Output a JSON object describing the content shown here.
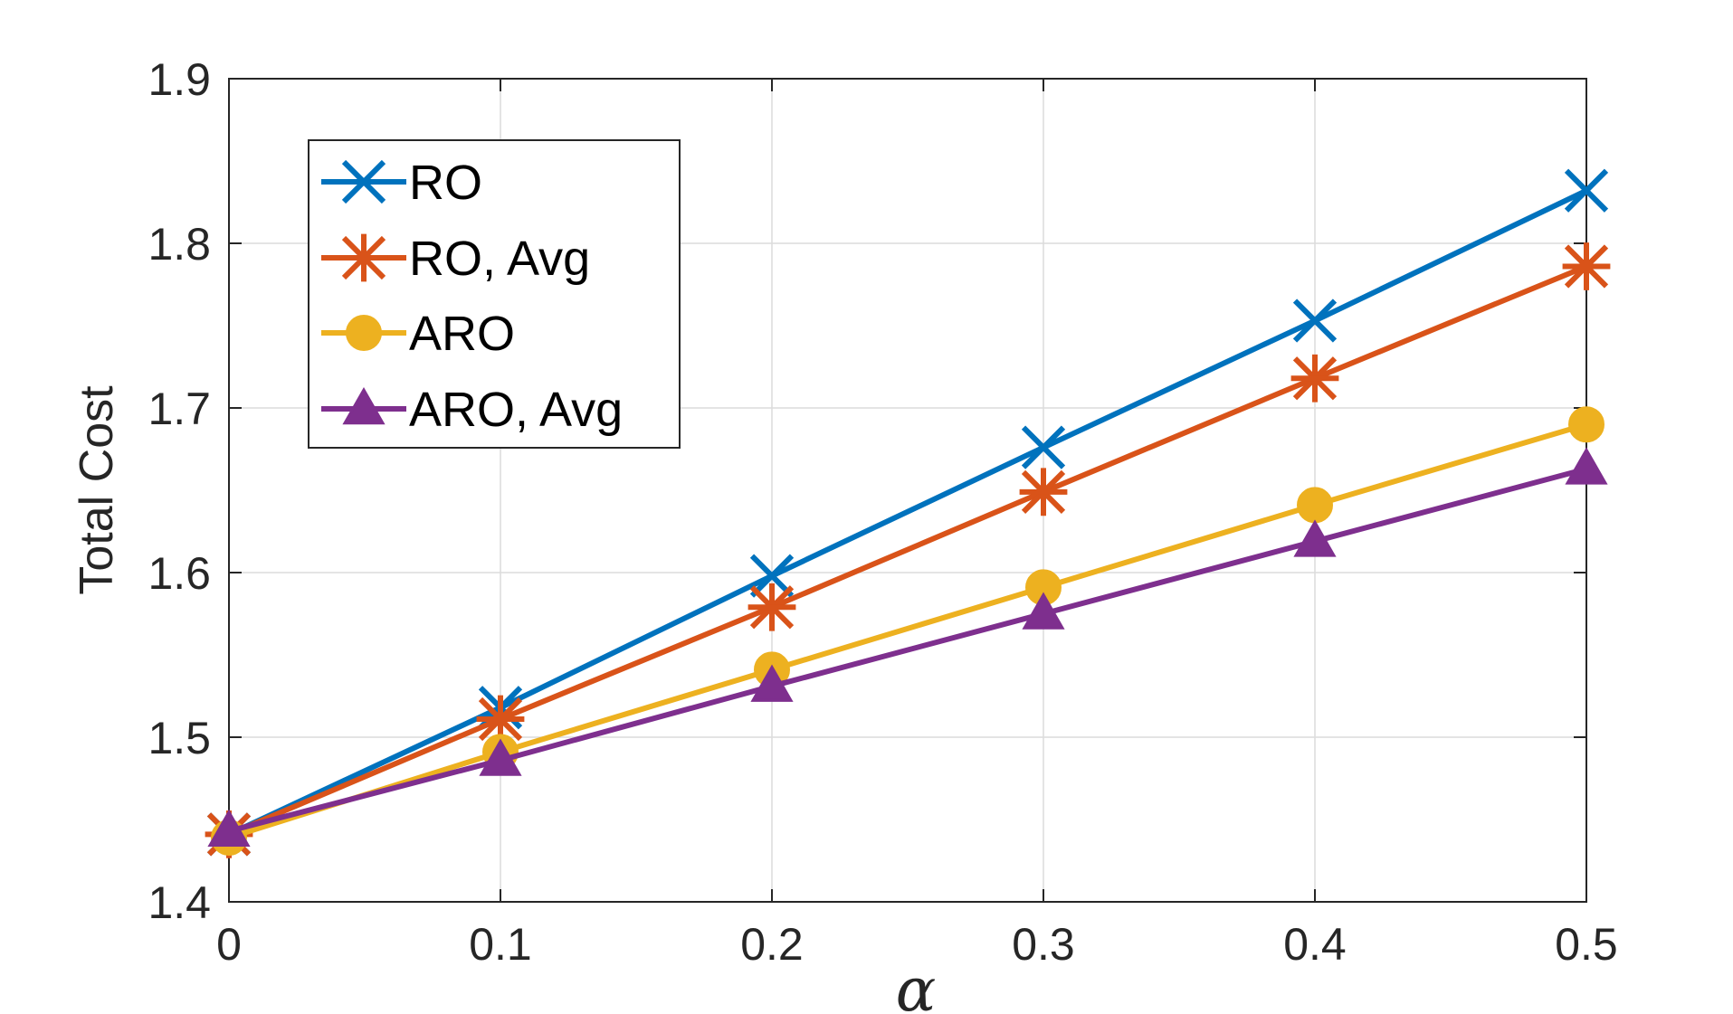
{
  "chart_data": {
    "type": "line",
    "xlabel": "α",
    "ylabel": "Total Cost",
    "title": "",
    "x": [
      0,
      0.1,
      0.2,
      0.3,
      0.4,
      0.5
    ],
    "xlim": [
      0,
      0.5
    ],
    "ylim": [
      1.4,
      1.9
    ],
    "xticks": [
      0,
      0.1,
      0.2,
      0.3,
      0.4,
      0.5
    ],
    "xtick_labels": [
      "0",
      "0.1",
      "0.2",
      "0.3",
      "0.4",
      "0.5"
    ],
    "yticks": [
      1.4,
      1.5,
      1.6,
      1.7,
      1.8,
      1.9
    ],
    "ytick_labels": [
      "1.4",
      "1.5",
      "1.6",
      "1.7",
      "1.8",
      "1.9"
    ],
    "grid": true,
    "legend_position": "top-left",
    "series": [
      {
        "name": "RO",
        "marker": "x-mark",
        "color": "#0072BD",
        "values": [
          1.441,
          1.518,
          1.598,
          1.676,
          1.753,
          1.832
        ]
      },
      {
        "name": "RO, Avg",
        "marker": "asterisk",
        "color": "#D95319",
        "values": [
          1.441,
          1.511,
          1.579,
          1.649,
          1.718,
          1.786
        ]
      },
      {
        "name": "ARO",
        "marker": "filled-circle",
        "color": "#EDB120",
        "values": [
          1.439,
          1.491,
          1.541,
          1.591,
          1.641,
          1.69
        ]
      },
      {
        "name": "ARO, Avg",
        "marker": "filled-triangle",
        "color": "#7E2F8E",
        "values": [
          1.443,
          1.486,
          1.531,
          1.575,
          1.619,
          1.663
        ]
      }
    ]
  }
}
